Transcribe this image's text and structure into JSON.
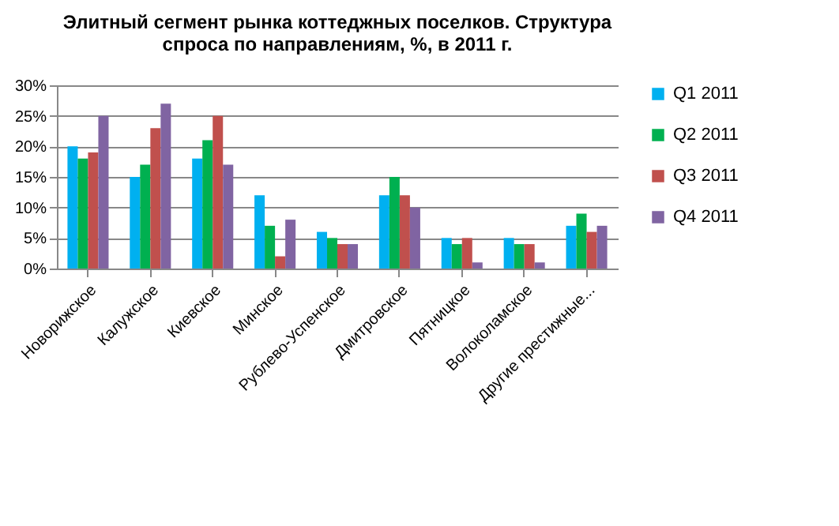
{
  "chart_data": {
    "type": "bar",
    "title": [
      "Элитный сегмент рынка коттеджных поселков. Структура",
      "спроса по направлениям, %, в 2011  г."
    ],
    "categories": [
      "Новорижское",
      "Калужское",
      "Киевское",
      "Минское",
      "Рублево-Успенское",
      "Дмитровское",
      "Пятницкое",
      "Волоколамское",
      "Другие престижные..."
    ],
    "series": [
      {
        "name": "Q1 2011",
        "color": "#00b0f0",
        "values": [
          20,
          15,
          18,
          12,
          6,
          12,
          5,
          5,
          7
        ]
      },
      {
        "name": "Q2 2011",
        "color": "#00b050",
        "values": [
          18,
          17,
          21,
          7,
          5,
          15,
          4,
          4,
          9
        ]
      },
      {
        "name": "Q3 2011",
        "color": "#c0504d",
        "values": [
          19,
          23,
          25,
          2,
          4,
          12,
          5,
          4,
          6
        ]
      },
      {
        "name": "Q4 2011",
        "color": "#8064a2",
        "values": [
          25,
          27,
          17,
          8,
          4,
          10,
          1,
          1,
          7
        ]
      }
    ],
    "ylim": [
      0,
      30
    ],
    "yticks": [
      {
        "value": 0,
        "label": "0%"
      },
      {
        "value": 5,
        "label": "5%"
      },
      {
        "value": 10,
        "label": "10%"
      },
      {
        "value": 15,
        "label": "15%"
      },
      {
        "value": 20,
        "label": "20%"
      },
      {
        "value": 25,
        "label": "25%"
      },
      {
        "value": 30,
        "label": "30%"
      }
    ],
    "grid": "y",
    "legend": "right"
  }
}
